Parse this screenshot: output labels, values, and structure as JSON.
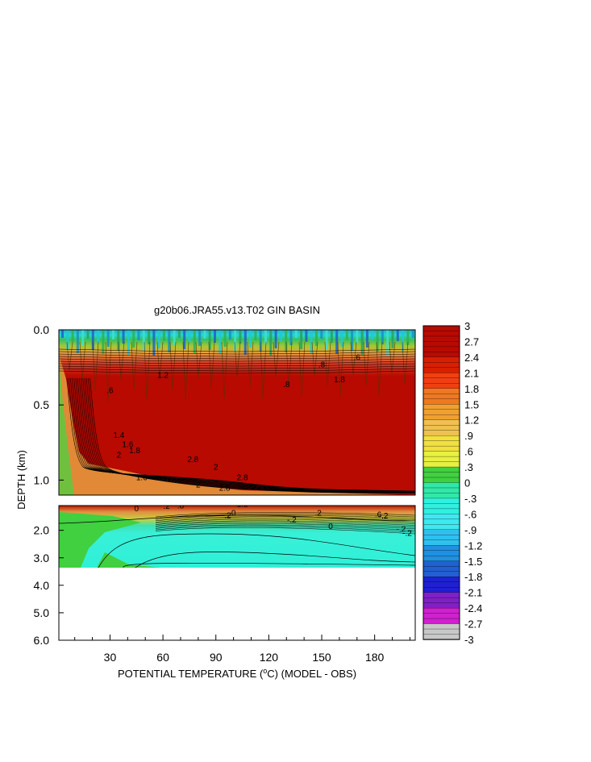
{
  "chart_data": {
    "type": "heatmap",
    "title": "g20b06.JRA55.v13.T02 GIN BASIN",
    "xlabel": "POTENTIAL TEMPERATURE (°C) (MODEL - OBS)",
    "xlabel_parts": {
      "prefix": "POTENTIAL TEMPERATURE (",
      "superscript": "o",
      "suffix": "C) (MODEL - OBS)"
    },
    "ylabel": "DEPTH (km)",
    "x_ticks": [
      "30",
      "60",
      "90",
      "120",
      "150",
      "180"
    ],
    "x_tick_values": [
      30,
      60,
      90,
      120,
      150,
      180
    ],
    "xlim": [
      1,
      203
    ],
    "upper_panel": {
      "ylim": [
        0,
        1.1
      ],
      "y_ticks": [
        "0.0",
        "0.5",
        "1.0"
      ],
      "y_tick_values": [
        0,
        0.5,
        1.0
      ]
    },
    "lower_panel": {
      "ylim": [
        1.1,
        6.0
      ],
      "y_ticks": [
        "2.0",
        "3.0",
        "4.0",
        "5.0",
        "6.0"
      ],
      "y_tick_values": [
        2,
        3,
        4,
        5,
        6
      ],
      "data_bottom_km": 3.3
    },
    "colorbar": {
      "range": [
        -3,
        3
      ],
      "levels": [
        "3",
        "2.7",
        "2.4",
        "2.1",
        "1.8",
        "1.5",
        "1.2",
        ".9",
        ".6",
        ".3",
        "0",
        "-.3",
        "-.6",
        "-.9",
        "-1.2",
        "-1.5",
        "-1.8",
        "-2.1",
        "-2.4",
        "-2.7",
        "-3"
      ]
    },
    "regions": [
      {
        "panel": "upper",
        "description_value": 3,
        "depth_range": [
          0.15,
          1.1
        ]
      },
      {
        "panel": "upper",
        "description_value": -0.6,
        "depth_range": [
          0.0,
          0.05
        ]
      },
      {
        "panel": "lower",
        "description_value": -0.3,
        "depth_range": [
          1.5,
          3.3
        ]
      },
      {
        "panel": "lower",
        "description_value": 0.3,
        "depth_range": [
          1.5,
          3.3
        ],
        "x_range": [
          1,
          25
        ]
      }
    ],
    "contour_labels": [
      "0",
      "-.2",
      "-.2",
      "0",
      "-.2",
      "0",
      "-.2",
      ".2",
      ".2",
      "-.2",
      ".6",
      ".8",
      "1.2",
      "1.4",
      "1.6",
      "1.8",
      "2",
      "2.8",
      "2",
      ".6",
      "1.6",
      "2",
      "2.8",
      ".8",
      "1.8",
      "1.2",
      "2.8",
      ".8",
      ".6"
    ],
    "grid": false,
    "legend": "right"
  }
}
